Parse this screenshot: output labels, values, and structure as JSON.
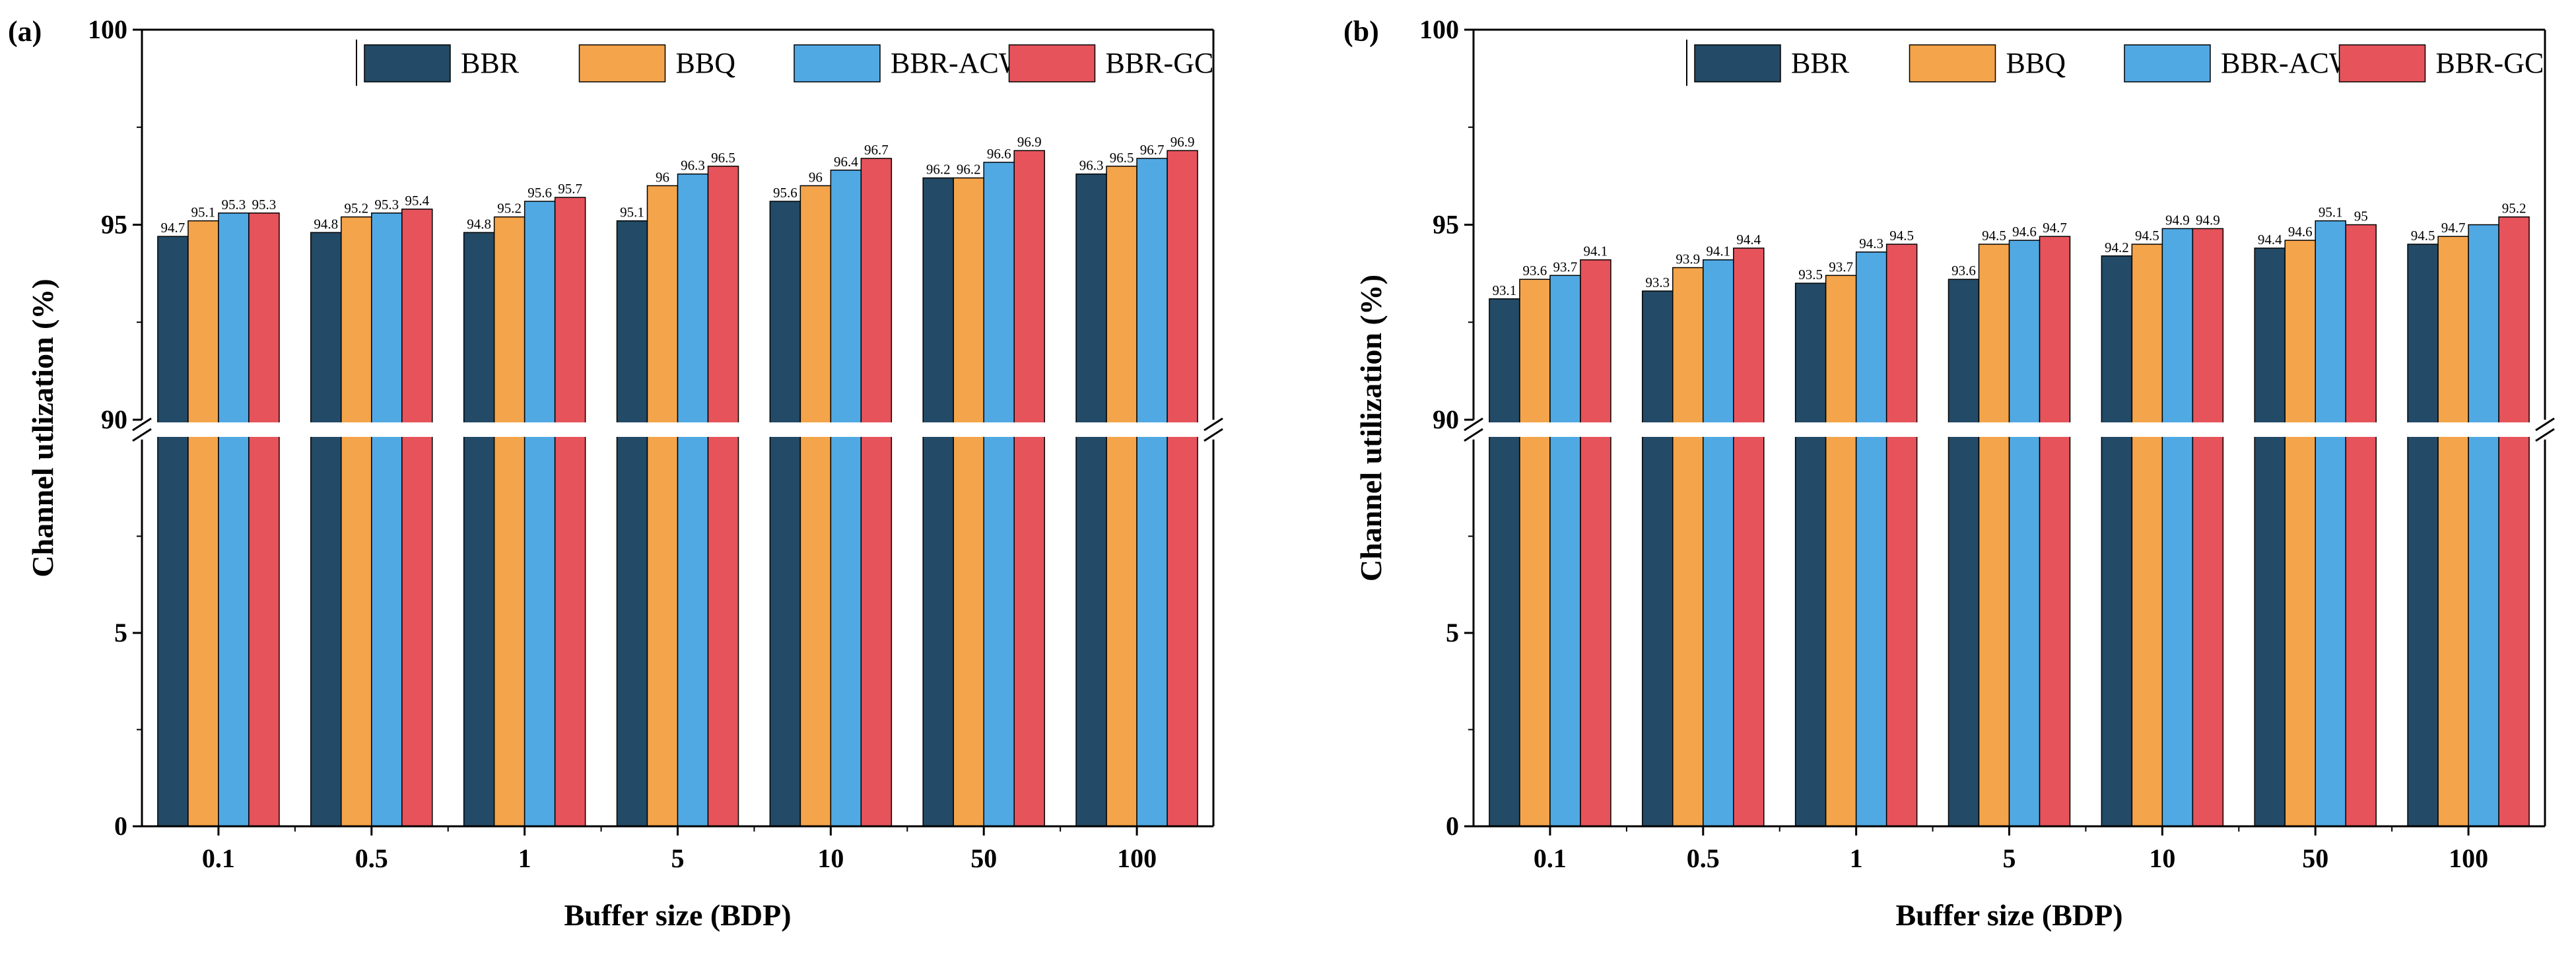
{
  "colors": {
    "BBR": "#234a66",
    "BBQ": "#f4a44a",
    "BBR-ACW": "#51a9e3",
    "BBR-GC": "#e6535b",
    "axis": "#000000",
    "background": "#ffffff"
  },
  "chart_data": [
    {
      "type": "bar",
      "panel_label": "(a)",
      "categories": [
        "0.1",
        "0.5",
        "1",
        "5",
        "10",
        "50",
        "100"
      ],
      "series": [
        {
          "name": "BBR",
          "values": [
            94.7,
            94.8,
            94.8,
            95.1,
            95.6,
            96.2,
            96.3
          ]
        },
        {
          "name": "BBQ",
          "values": [
            95.1,
            95.2,
            95.2,
            96.0,
            96.0,
            96.2,
            96.5
          ]
        },
        {
          "name": "BBR-ACW",
          "values": [
            95.3,
            95.3,
            95.6,
            96.3,
            96.4,
            96.6,
            96.7
          ]
        },
        {
          "name": "BBR-GC",
          "values": [
            95.3,
            95.4,
            95.7,
            96.5,
            96.7,
            96.9,
            96.9
          ]
        }
      ],
      "value_labels": [
        [
          "94.7",
          "94.8",
          "94.8",
          "95.1",
          "95.6",
          "96.2",
          "96.3"
        ],
        [
          "95.1",
          "95.2",
          "95.2",
          "96",
          "96",
          "96.2",
          "96.5"
        ],
        [
          "95.3",
          "95.3",
          "95.6",
          "96.3",
          "96.4",
          "96.6",
          "96.7"
        ],
        [
          "95.3",
          "95.4",
          "95.7",
          "96.5",
          "96.7",
          "96.9",
          "96.9"
        ]
      ],
      "xlabel": "Buffer size (BDP)",
      "ylabel": "Channel utlization (%)",
      "axis_break": {
        "lower_range": [
          0,
          10
        ],
        "upper_range": [
          90,
          100
        ]
      },
      "lower_ticks": [
        "0",
        "5"
      ],
      "upper_ticks": [
        "90",
        "95",
        "100"
      ],
      "legend": {
        "position": "top-right",
        "orientation": "horizontal"
      },
      "grid": false
    },
    {
      "type": "bar",
      "panel_label": "(b)",
      "categories": [
        "0.1",
        "0.5",
        "1",
        "5",
        "10",
        "50",
        "100"
      ],
      "series": [
        {
          "name": "BBR",
          "values": [
            93.1,
            93.3,
            93.5,
            93.6,
            94.2,
            94.4,
            94.5
          ]
        },
        {
          "name": "BBQ",
          "values": [
            93.6,
            93.9,
            93.7,
            94.5,
            94.5,
            94.6,
            94.7
          ]
        },
        {
          "name": "BBR-ACW",
          "values": [
            93.7,
            94.1,
            94.3,
            94.6,
            94.9,
            95.1,
            95.0
          ]
        },
        {
          "name": "BBR-GC",
          "values": [
            94.1,
            94.4,
            94.5,
            94.7,
            94.9,
            95.0,
            95.2
          ]
        }
      ],
      "value_labels": [
        [
          "93.1",
          "93.3",
          "93.5",
          "93.6",
          "94.2",
          "94.4",
          "94.5"
        ],
        [
          "93.6",
          "93.9",
          "93.7",
          "94.5",
          "94.5",
          "94.6",
          "94.7"
        ],
        [
          "93.7",
          "94.1",
          "94.3",
          "94.6",
          "94.9",
          "95.1",
          ""
        ],
        [
          "94.1",
          "94.4",
          "94.5",
          "94.7",
          "94.9",
          "95",
          "95.2"
        ]
      ],
      "xlabel": "Buffer size (BDP)",
      "ylabel": "Channel utilization (%)",
      "axis_break": {
        "lower_range": [
          0,
          10
        ],
        "upper_range": [
          90,
          100
        ]
      },
      "lower_ticks": [
        "0",
        "5"
      ],
      "upper_ticks": [
        "90",
        "95",
        "100"
      ],
      "legend": {
        "position": "top-right",
        "orientation": "horizontal"
      },
      "grid": false
    }
  ]
}
